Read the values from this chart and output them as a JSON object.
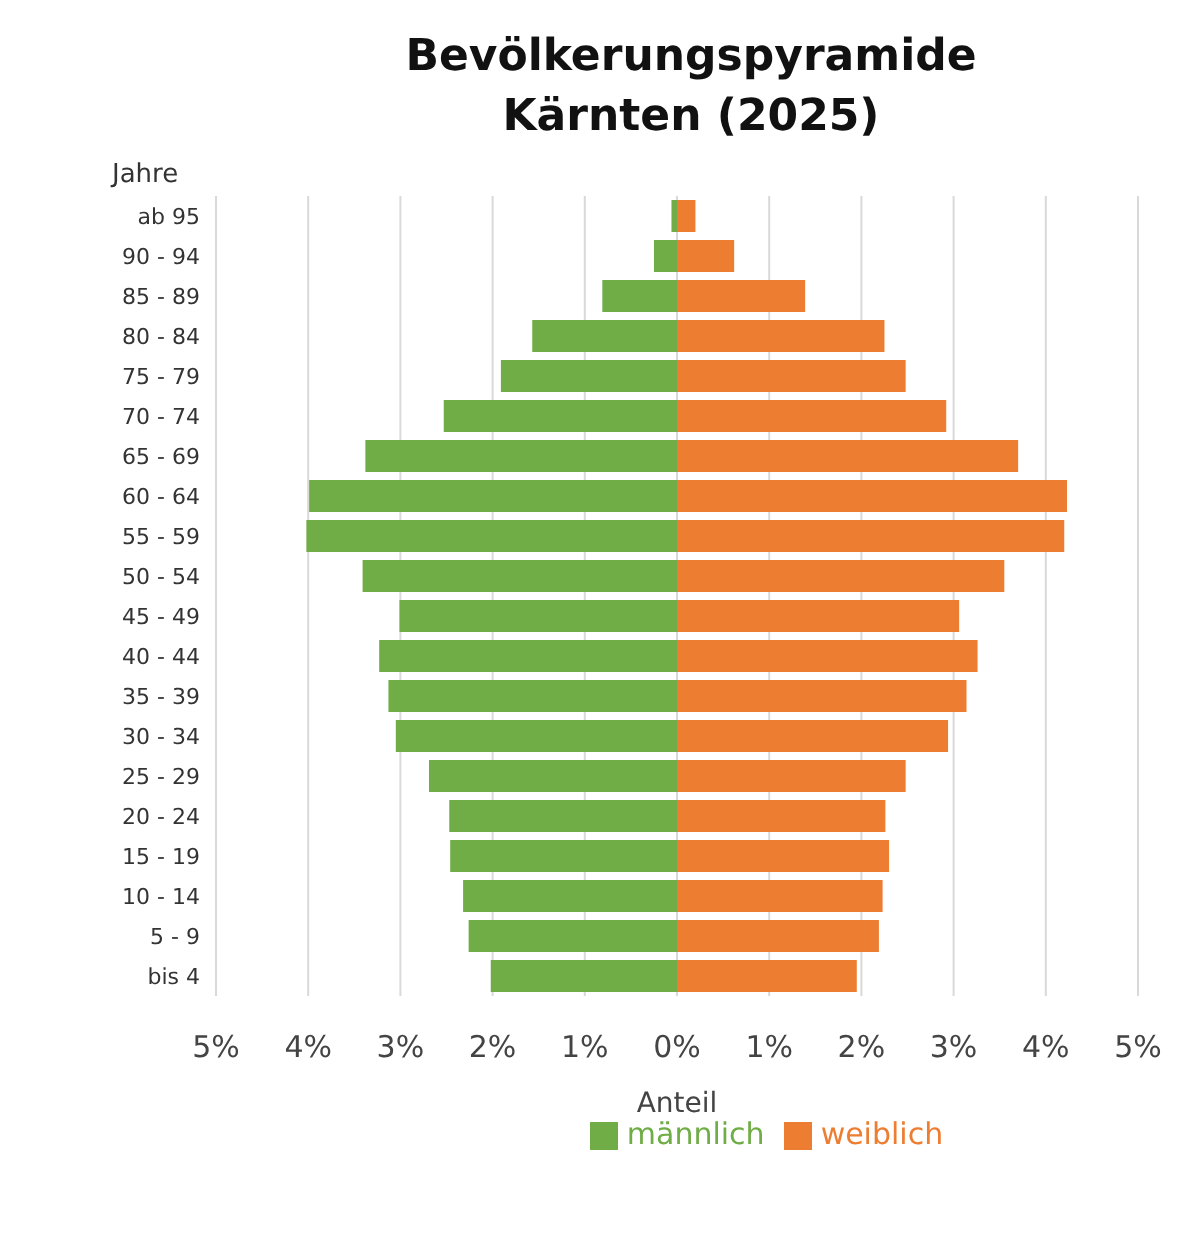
{
  "chart_data": {
    "type": "bar",
    "orientation": "horizontal",
    "stacked": true,
    "title": "Bevölkerungspyramide\nKärnten (2025)",
    "ylabel": "Jahre",
    "xlabel": "Anteil",
    "categories": [
      "ab 95",
      "90 - 94",
      "85 - 89",
      "80 - 84",
      "75 - 79",
      "70 - 74",
      "65 - 69",
      "60 - 64",
      "55 - 59",
      "50 - 54",
      "45 - 49",
      "40 - 44",
      "35 - 39",
      "30 - 34",
      "25 - 29",
      "20 - 24",
      "15 - 19",
      "10 - 14",
      "5 - 9",
      "bis 4"
    ],
    "series": [
      {
        "name": "männlich",
        "color": "#70ad47",
        "values": [
          -0.06,
          -0.25,
          -0.81,
          -1.57,
          -1.91,
          -2.53,
          -3.38,
          -3.99,
          -4.02,
          -3.41,
          -3.01,
          -3.23,
          -3.13,
          -3.05,
          -2.69,
          -2.47,
          -2.46,
          -2.32,
          -2.26,
          -2.02
        ]
      },
      {
        "name": "weiblich",
        "color": "#ed7d31",
        "values": [
          0.2,
          0.62,
          1.39,
          2.25,
          2.48,
          2.92,
          3.7,
          4.23,
          4.2,
          3.55,
          3.06,
          3.26,
          3.14,
          2.94,
          2.48,
          2.26,
          2.3,
          2.23,
          2.19,
          1.95
        ]
      }
    ],
    "xlim": [
      -5,
      5
    ],
    "xticks": [
      {
        "value": -5,
        "label": "5%"
      },
      {
        "value": -4,
        "label": "4%"
      },
      {
        "value": -3,
        "label": "3%"
      },
      {
        "value": -2,
        "label": "2%"
      },
      {
        "value": -1,
        "label": "1%"
      },
      {
        "value": 0,
        "label": "0%"
      },
      {
        "value": 1,
        "label": "1%"
      },
      {
        "value": 2,
        "label": "2%"
      },
      {
        "value": 3,
        "label": "3%"
      },
      {
        "value": 4,
        "label": "4%"
      },
      {
        "value": 5,
        "label": "5%"
      }
    ],
    "grid": "x",
    "legend": "bottom"
  }
}
